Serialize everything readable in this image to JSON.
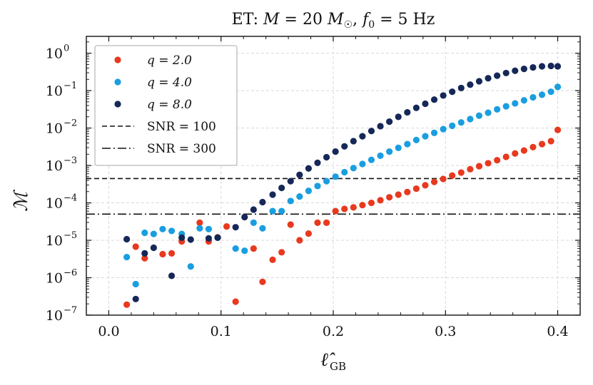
{
  "chart_data": {
    "type": "scatter",
    "title": "ET: M = 20 M☉, f₀ = 5 Hz",
    "xlabel": "ℓ̂",
    "xlabel_sub": "GB",
    "ylabel": "ℳ",
    "xscale": "linear",
    "yscale": "log",
    "xlim": [
      -0.02,
      0.42
    ],
    "ylim_exponents": [
      -7,
      0.45
    ],
    "xticks": [
      0.0,
      0.1,
      0.2,
      0.3,
      0.4
    ],
    "xtick_labels": [
      "0.0",
      "0.1",
      "0.2",
      "0.3",
      "0.4"
    ],
    "yticks_base": "10",
    "ytick_exponents": [
      "0",
      "−1",
      "−2",
      "−3",
      "−4",
      "−5",
      "−6",
      "−7"
    ],
    "grid": true,
    "legend_position": "top-left",
    "series": [
      {
        "name": "q = 2.0",
        "color": "#e8391e",
        "points": [
          [
            0.016,
            -6.72
          ],
          [
            0.024,
            -5.17
          ],
          [
            0.032,
            -5.48
          ],
          [
            0.048,
            -5.37
          ],
          [
            0.056,
            -5.35
          ],
          [
            0.065,
            -5.03
          ],
          [
            0.081,
            -4.53
          ],
          [
            0.089,
            -5.03
          ],
          [
            0.097,
            -4.92
          ],
          [
            0.105,
            -4.63
          ],
          [
            0.113,
            -6.64
          ],
          [
            0.137,
            -6.11
          ],
          [
            0.129,
            -5.22
          ],
          [
            0.146,
            -5.52
          ],
          [
            0.154,
            -5.32
          ],
          [
            0.162,
            -4.58
          ],
          [
            0.17,
            -5.0
          ],
          [
            0.178,
            -4.82
          ],
          [
            0.186,
            -4.53
          ],
          [
            0.194,
            -4.53
          ],
          [
            0.202,
            -4.22
          ],
          [
            0.21,
            -4.16
          ],
          [
            0.218,
            -4.12
          ],
          [
            0.226,
            -4.06
          ],
          [
            0.234,
            -4.0
          ],
          [
            0.242,
            -3.93
          ],
          [
            0.25,
            -3.85
          ],
          [
            0.258,
            -3.78
          ],
          [
            0.266,
            -3.71
          ],
          [
            0.274,
            -3.62
          ],
          [
            0.282,
            -3.53
          ],
          [
            0.29,
            -3.44
          ],
          [
            0.298,
            -3.36
          ],
          [
            0.306,
            -3.27
          ],
          [
            0.314,
            -3.19
          ],
          [
            0.322,
            -3.1
          ],
          [
            0.33,
            -3.02
          ],
          [
            0.338,
            -2.94
          ],
          [
            0.346,
            -2.86
          ],
          [
            0.354,
            -2.77
          ],
          [
            0.362,
            -2.68
          ],
          [
            0.37,
            -2.6
          ],
          [
            0.378,
            -2.51
          ],
          [
            0.386,
            -2.43
          ],
          [
            0.394,
            -2.35
          ],
          [
            0.4,
            -2.05
          ]
        ]
      },
      {
        "name": "q = 4.0",
        "color": "#1a9ee0",
        "points": [
          [
            0.016,
            -5.45
          ],
          [
            0.024,
            -6.17
          ],
          [
            0.032,
            -4.8
          ],
          [
            0.04,
            -4.83
          ],
          [
            0.048,
            -4.7
          ],
          [
            0.056,
            -4.75
          ],
          [
            0.065,
            -4.83
          ],
          [
            0.073,
            -5.7
          ],
          [
            0.081,
            -4.68
          ],
          [
            0.089,
            -4.7
          ],
          [
            0.097,
            -4.93
          ],
          [
            0.113,
            -5.22
          ],
          [
            0.121,
            -5.28
          ],
          [
            0.129,
            -4.53
          ],
          [
            0.137,
            -4.68
          ],
          [
            0.146,
            -4.22
          ],
          [
            0.154,
            -4.22
          ],
          [
            0.162,
            -3.95
          ],
          [
            0.17,
            -3.83
          ],
          [
            0.178,
            -3.68
          ],
          [
            0.186,
            -3.55
          ],
          [
            0.194,
            -3.42
          ],
          [
            0.202,
            -3.3
          ],
          [
            0.21,
            -3.18
          ],
          [
            0.218,
            -3.07
          ],
          [
            0.226,
            -2.96
          ],
          [
            0.234,
            -2.85
          ],
          [
            0.242,
            -2.74
          ],
          [
            0.25,
            -2.63
          ],
          [
            0.258,
            -2.53
          ],
          [
            0.266,
            -2.43
          ],
          [
            0.274,
            -2.32
          ],
          [
            0.282,
            -2.22
          ],
          [
            0.29,
            -2.13
          ],
          [
            0.298,
            -2.03
          ],
          [
            0.306,
            -1.94
          ],
          [
            0.314,
            -1.85
          ],
          [
            0.322,
            -1.76
          ],
          [
            0.33,
            -1.67
          ],
          [
            0.338,
            -1.59
          ],
          [
            0.346,
            -1.5
          ],
          [
            0.354,
            -1.42
          ],
          [
            0.362,
            -1.34
          ],
          [
            0.37,
            -1.26
          ],
          [
            0.378,
            -1.18
          ],
          [
            0.386,
            -1.11
          ],
          [
            0.394,
            -1.03
          ],
          [
            0.4,
            -0.9
          ]
        ]
      },
      {
        "name": "q = 8.0",
        "color": "#152858",
        "points": [
          [
            0.016,
            -4.97
          ],
          [
            0.024,
            -6.57
          ],
          [
            0.032,
            -5.35
          ],
          [
            0.04,
            -5.2
          ],
          [
            0.056,
            -5.95
          ],
          [
            0.065,
            -4.93
          ],
          [
            0.073,
            -4.98
          ],
          [
            0.089,
            -4.95
          ],
          [
            0.097,
            -4.93
          ],
          [
            0.113,
            -4.65
          ],
          [
            0.121,
            -4.38
          ],
          [
            0.129,
            -4.18
          ],
          [
            0.137,
            -3.98
          ],
          [
            0.146,
            -3.78
          ],
          [
            0.154,
            -3.6
          ],
          [
            0.162,
            -3.42
          ],
          [
            0.17,
            -3.25
          ],
          [
            0.178,
            -3.08
          ],
          [
            0.186,
            -2.93
          ],
          [
            0.194,
            -2.78
          ],
          [
            0.202,
            -2.63
          ],
          [
            0.21,
            -2.49
          ],
          [
            0.218,
            -2.35
          ],
          [
            0.226,
            -2.22
          ],
          [
            0.234,
            -2.08
          ],
          [
            0.242,
            -1.95
          ],
          [
            0.25,
            -1.83
          ],
          [
            0.258,
            -1.7
          ],
          [
            0.266,
            -1.58
          ],
          [
            0.274,
            -1.46
          ],
          [
            0.282,
            -1.35
          ],
          [
            0.29,
            -1.24
          ],
          [
            0.298,
            -1.13
          ],
          [
            0.306,
            -1.03
          ],
          [
            0.314,
            -0.93
          ],
          [
            0.322,
            -0.84
          ],
          [
            0.33,
            -0.75
          ],
          [
            0.338,
            -0.67
          ],
          [
            0.346,
            -0.6
          ],
          [
            0.354,
            -0.53
          ],
          [
            0.362,
            -0.47
          ],
          [
            0.37,
            -0.42
          ],
          [
            0.378,
            -0.38
          ],
          [
            0.386,
            -0.35
          ],
          [
            0.394,
            -0.34
          ],
          [
            0.4,
            -0.35
          ]
        ]
      }
    ],
    "hlines": [
      {
        "name": "SNR = 100",
        "log10_value": -3.35,
        "style": "dashed"
      },
      {
        "name": "SNR = 300",
        "log10_value": -4.3,
        "style": "dashdot"
      }
    ]
  }
}
